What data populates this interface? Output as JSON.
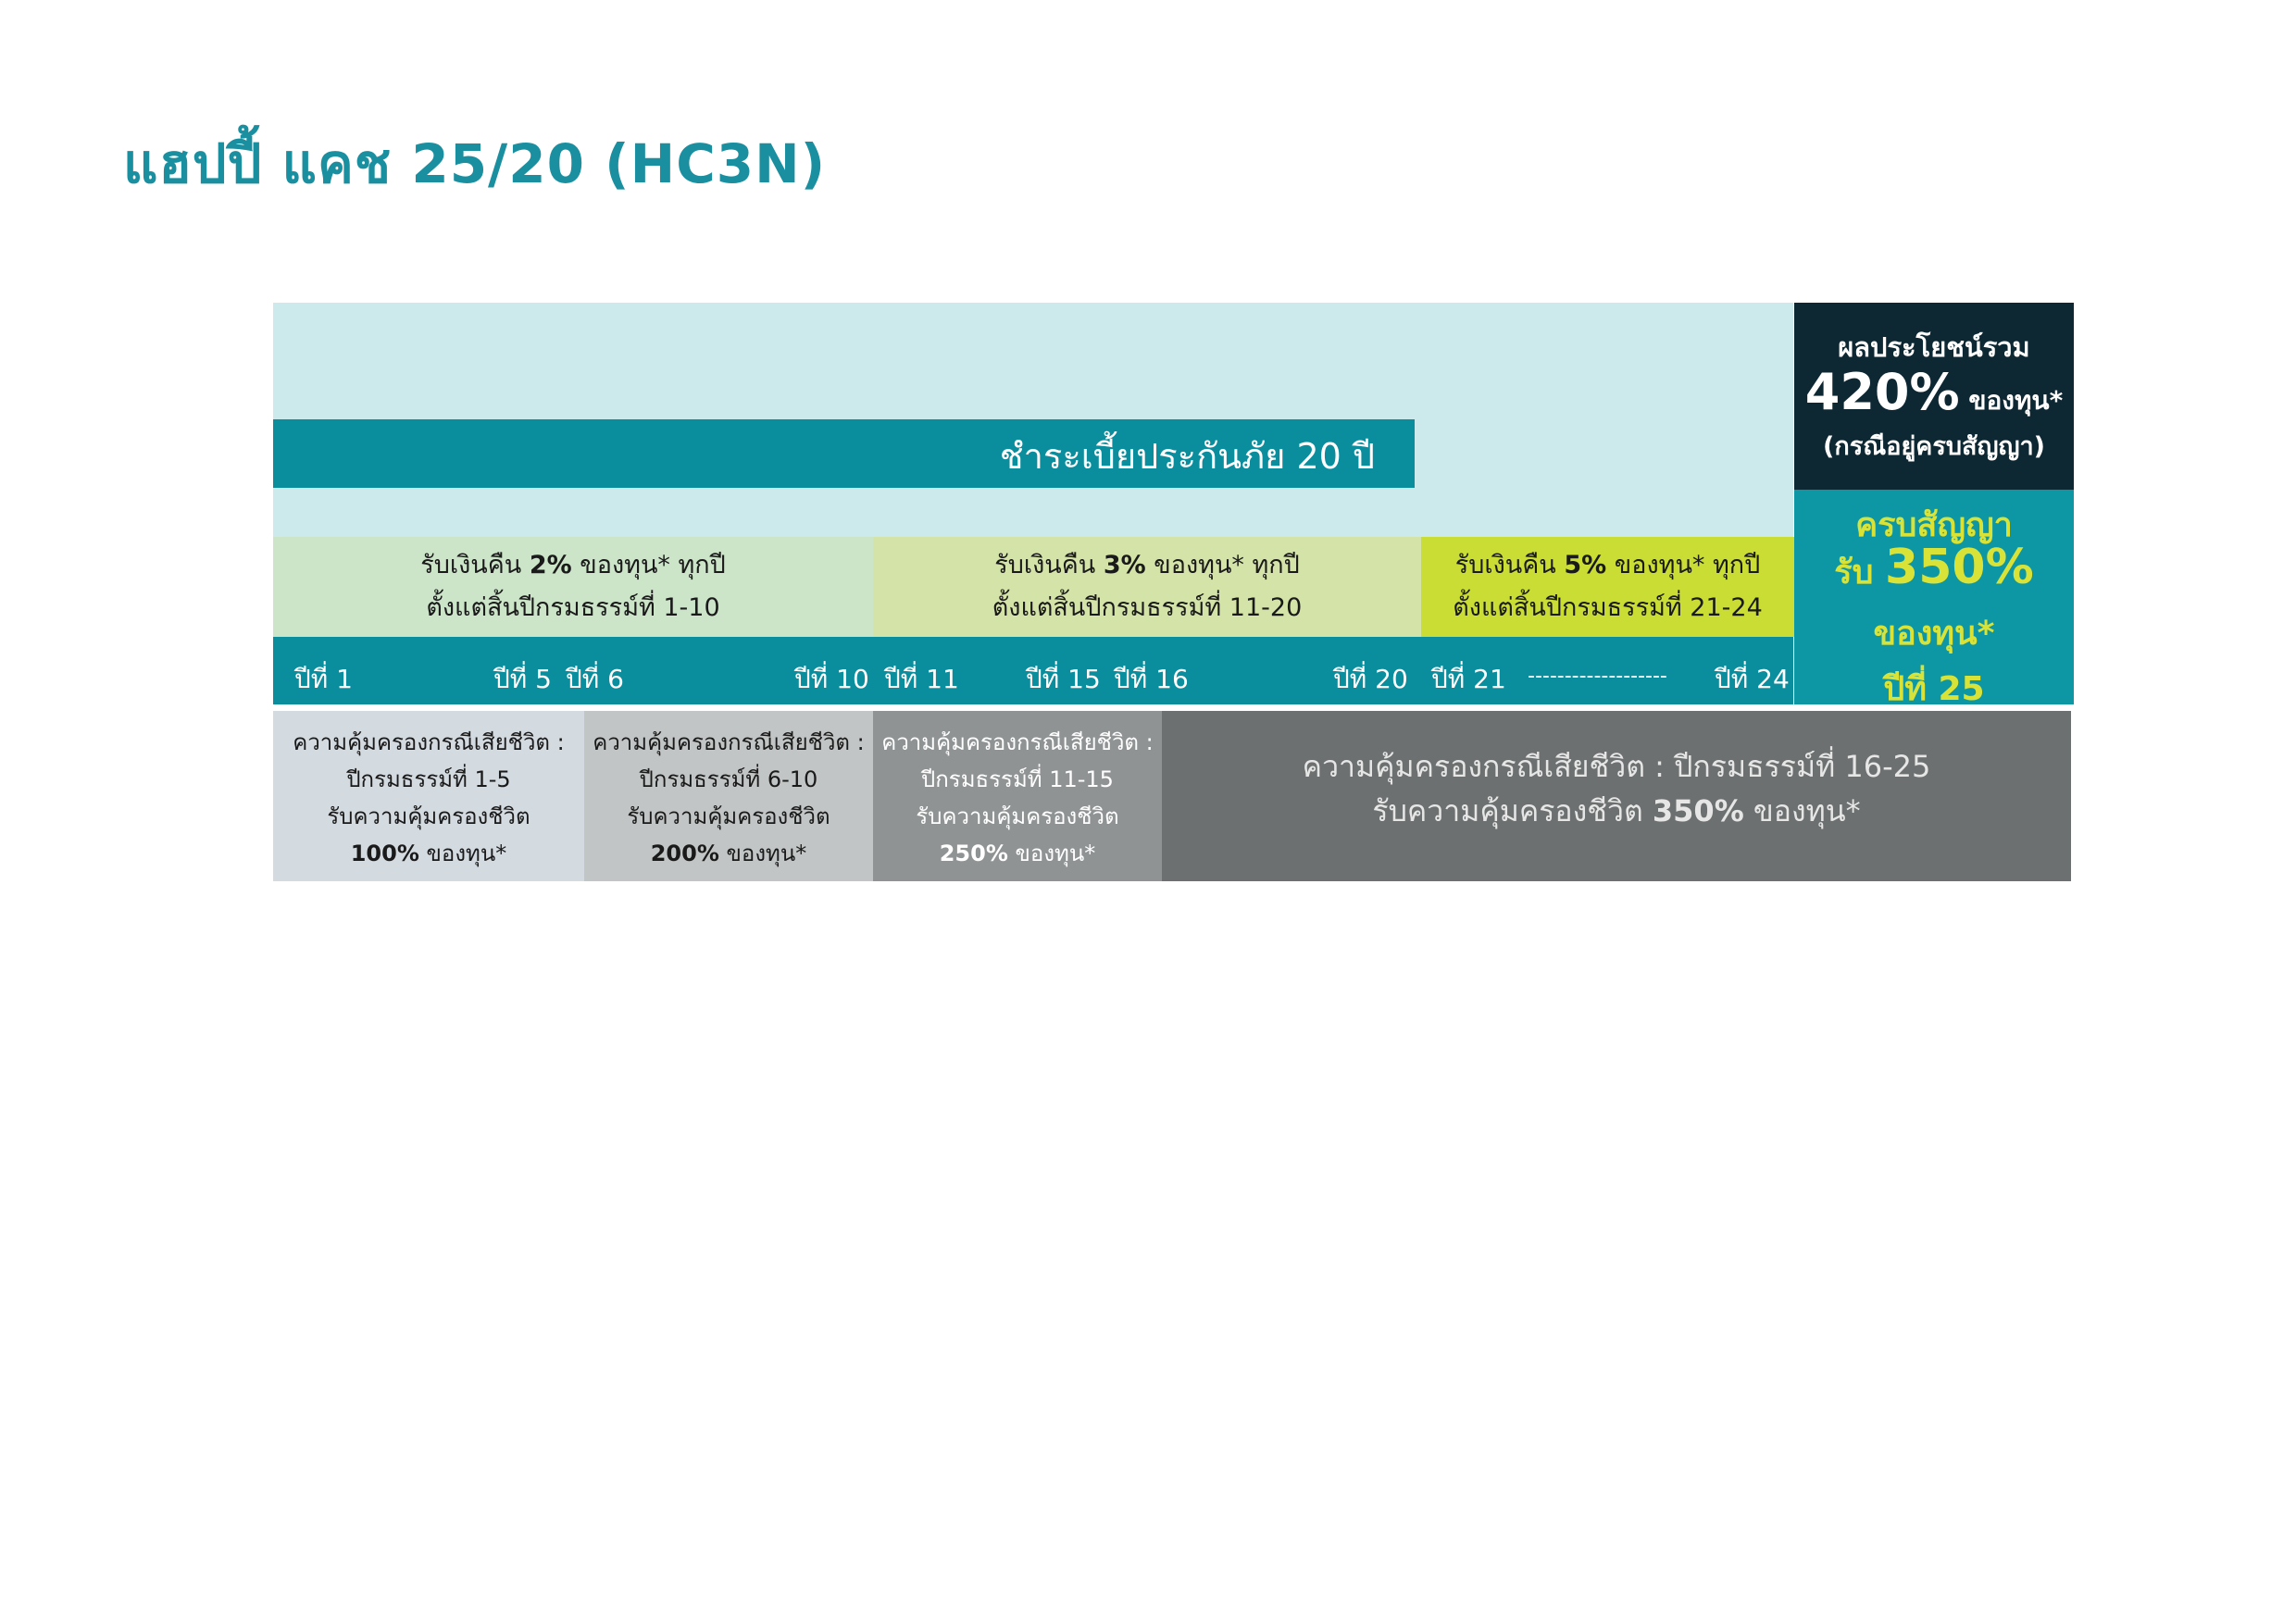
{
  "title": "แฮปปี้ แคช 25/20 (HC3N)",
  "premium": {
    "label": "ชำระเบี้ยประกันภัย 20 ปี"
  },
  "cashback": [
    {
      "prefix": "รับเงินคืน ",
      "pct": "2%",
      "suffix": " ของทุน* ทุกปี",
      "line2": "ตั้งแต่สิ้นปีกรมธรรม์ที่ 1-10"
    },
    {
      "prefix": "รับเงินคืน ",
      "pct": "3%",
      "suffix": " ของทุน* ทุกปี",
      "line2": "ตั้งแต่สิ้นปีกรมธรรม์ที่ 11-20"
    },
    {
      "prefix": "รับเงินคืน ",
      "pct": "5%",
      "suffix": " ของทุน* ทุกปี",
      "line2": "ตั้งแต่สิ้นปีกรมธรรม์ที่ 21-24"
    }
  ],
  "years": [
    "ปีที่ 1",
    "ปีที่ 5",
    "ปีที่ 6",
    "ปีที่ 10",
    "ปีที่ 11",
    "ปีที่ 15",
    "ปีที่ 16",
    "ปีที่ 20",
    "ปีที่ 21",
    "-------------------",
    "ปีที่ 24"
  ],
  "maturity": {
    "total_label": "ผลประโยชน์รวม",
    "total_pct": "420%",
    "total_suffix": " ของทุน*",
    "total_note": "(กรณีอยู่ครบสัญญา)",
    "line1": "ครบสัญญา",
    "line2_prefix": "รับ ",
    "line2_pct": "350%",
    "line3": "ของทุน*",
    "line4": "ปีที่ 25"
  },
  "coverage": [
    {
      "line1": "ความคุ้มครองกรณีเสียชีวิต :",
      "line2": "ปีกรมธรรม์ที่ 1-5",
      "line3": "รับความคุ้มครองชีวิต",
      "pct": "100%",
      "suffix": " ของทุน*"
    },
    {
      "line1": "ความคุ้มครองกรณีเสียชีวิต :",
      "line2": "ปีกรมธรรม์ที่ 6-10",
      "line3": "รับความคุ้มครองชีวิต",
      "pct": "200%",
      "suffix": " ของทุน*"
    },
    {
      "line1": "ความคุ้มครองกรณีเสียชีวิต :",
      "line2": "ปีกรมธรรม์ที่ 11-15",
      "line3": "รับความคุ้มครองชีวิต",
      "pct": "250%",
      "suffix": " ของทุน*"
    },
    {
      "line1": "ความคุ้มครองกรณีเสียชีวิต : ปีกรมธรรม์ที่ 16-25",
      "line2_prefix": "รับความคุ้มครองชีวิต ",
      "pct": "350%",
      "suffix": " ของทุน*"
    }
  ]
}
